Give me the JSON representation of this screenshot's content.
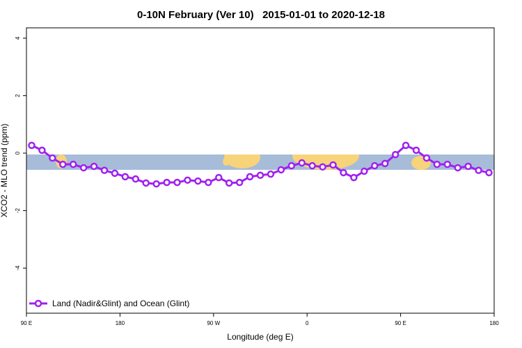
{
  "chart_data": {
    "type": "line",
    "title": "0-10N February (Ver 10)   2015-01-01 to 2020-12-18",
    "x_label": "Longitude (deg E)",
    "y_label": "XCO2 - MLO trend (ppm)",
    "x": [
      95,
      105,
      115,
      125,
      135,
      145,
      155,
      165,
      175,
      185,
      195,
      205,
      215,
      225,
      235,
      245,
      255,
      265,
      275,
      285,
      295,
      305,
      315,
      325,
      335,
      345,
      355,
      365,
      375,
      385,
      395,
      405,
      415,
      425,
      435,
      445,
      455,
      465,
      475,
      485,
      495,
      505,
      515,
      525,
      535
    ],
    "series": [
      {
        "name": "Land (Nadir&Glint) and Ocean (Glint)",
        "color": "#a020f0",
        "values": [
          0.27,
          0.1,
          -0.17,
          -0.39,
          -0.39,
          -0.51,
          -0.46,
          -0.6,
          -0.7,
          -0.82,
          -0.9,
          -1.04,
          -1.07,
          -1.02,
          -1.02,
          -0.94,
          -0.97,
          -1.02,
          -0.85,
          -1.04,
          -1.02,
          -0.82,
          -0.77,
          -0.73,
          -0.58,
          -0.44,
          -0.34,
          -0.44,
          -0.48,
          -0.41,
          -0.68,
          -0.85,
          -0.63,
          -0.44,
          -0.36,
          -0.05,
          0.27,
          0.1,
          -0.17,
          -0.39,
          -0.39,
          -0.51,
          -0.46,
          -0.6,
          -0.68
        ]
      }
    ],
    "xlim": [
      90,
      540
    ],
    "xticks": [
      {
        "value": 90,
        "label": "90 E"
      },
      {
        "value": 180,
        "label": "180"
      },
      {
        "value": 270,
        "label": "90 W"
      },
      {
        "value": 360,
        "label": "0"
      },
      {
        "value": 450,
        "label": "90 E"
      },
      {
        "value": 540,
        "label": "180"
      }
    ],
    "ylim": [
      -5.57,
      4.36
    ],
    "yticks": [
      -4,
      -2,
      0,
      2,
      4
    ],
    "legend": "bottom-left"
  }
}
